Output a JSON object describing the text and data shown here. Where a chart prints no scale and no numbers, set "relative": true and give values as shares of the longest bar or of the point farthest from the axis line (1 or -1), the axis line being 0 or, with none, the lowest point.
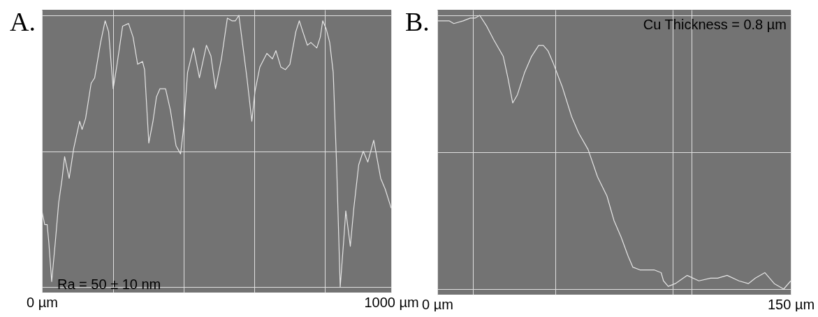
{
  "chart_data": [
    {
      "type": "line",
      "title": "A.",
      "annotations": [
        "Ra = 50 ± 10 nm"
      ],
      "relative": true,
      "grid": true,
      "xlim": [
        0,
        1000
      ],
      "xticks": [
        {
          "value": 0,
          "label": "0 µm"
        },
        {
          "value": 203,
          "label": null
        },
        {
          "value": 405,
          "label": null
        },
        {
          "value": 607,
          "label": null
        },
        {
          "value": 809,
          "label": null
        },
        {
          "value": 1000,
          "label": "1000 µm"
        }
      ],
      "x": [
        0,
        8,
        15,
        20,
        28,
        38,
        48,
        58,
        65,
        78,
        91,
        108,
        115,
        125,
        141,
        151,
        168,
        181,
        191,
        204,
        214,
        231,
        248,
        261,
        274,
        288,
        294,
        306,
        318,
        328,
        338,
        354,
        368,
        384,
        397,
        406,
        417,
        434,
        451,
        471,
        484,
        497,
        514,
        531,
        544,
        554,
        564,
        574,
        587,
        601,
        610,
        624,
        644,
        660,
        670,
        684,
        697,
        710,
        727,
        737,
        747,
        760,
        770,
        787,
        797,
        804,
        814,
        824,
        834,
        844,
        854,
        864,
        870,
        883,
        893,
        907,
        920,
        933,
        950,
        970,
        983,
        1000
      ],
      "series": [
        {
          "color": "#e6e6e6",
          "values": [
            0.28,
            0.23,
            0.23,
            0.16,
            0.02,
            0.16,
            0.31,
            0.4,
            0.48,
            0.4,
            0.51,
            0.61,
            0.58,
            0.62,
            0.75,
            0.77,
            0.9,
            0.98,
            0.94,
            0.73,
            0.81,
            0.96,
            0.97,
            0.92,
            0.82,
            0.83,
            0.8,
            0.53,
            0.61,
            0.7,
            0.73,
            0.73,
            0.65,
            0.52,
            0.49,
            0.59,
            0.79,
            0.88,
            0.77,
            0.89,
            0.85,
            0.73,
            0.84,
            0.99,
            0.98,
            0.98,
            1.0,
            0.9,
            0.77,
            0.61,
            0.72,
            0.81,
            0.86,
            0.84,
            0.87,
            0.81,
            0.8,
            0.82,
            0.94,
            0.98,
            0.94,
            0.89,
            0.9,
            0.88,
            0.92,
            0.98,
            0.95,
            0.9,
            0.79,
            0.44,
            0.0,
            0.17,
            0.28,
            0.15,
            0.29,
            0.45,
            0.5,
            0.46,
            0.54,
            0.4,
            0.36,
            0.29
          ]
        }
      ]
    },
    {
      "type": "line",
      "title": "B.",
      "annotations": [
        "Cu Thickness = 0.8 µm"
      ],
      "relative": true,
      "grid": true,
      "xlim": [
        0,
        150
      ],
      "xticks": [
        {
          "value": 0,
          "label": "0 µm"
        },
        {
          "value": 15,
          "label": null
        },
        {
          "value": 50,
          "label": null
        },
        {
          "value": 100,
          "label": null
        },
        {
          "value": 108,
          "label": null
        },
        {
          "value": 150,
          "label": "150 µm"
        }
      ],
      "x": [
        0,
        2,
        5,
        7,
        11,
        14,
        16,
        18,
        21,
        24,
        26,
        28,
        30,
        32,
        34,
        37,
        40,
        43,
        45,
        47,
        49,
        53,
        57,
        60,
        64,
        68,
        72,
        75,
        78,
        81,
        83,
        86,
        89,
        92,
        95,
        96,
        98,
        101,
        106,
        111,
        116,
        119,
        123,
        128,
        132,
        135,
        139,
        143,
        147,
        150
      ],
      "series": [
        {
          "color": "#e6e6e6",
          "values": [
            0.98,
            0.98,
            0.98,
            0.97,
            0.98,
            0.99,
            0.99,
            1.0,
            0.96,
            0.91,
            0.88,
            0.85,
            0.77,
            0.68,
            0.71,
            0.79,
            0.85,
            0.89,
            0.89,
            0.87,
            0.83,
            0.74,
            0.63,
            0.57,
            0.51,
            0.41,
            0.34,
            0.25,
            0.19,
            0.12,
            0.08,
            0.07,
            0.07,
            0.07,
            0.06,
            0.03,
            0.01,
            0.02,
            0.05,
            0.03,
            0.04,
            0.04,
            0.05,
            0.03,
            0.02,
            0.04,
            0.06,
            0.02,
            0.0,
            0.03
          ]
        }
      ]
    }
  ]
}
